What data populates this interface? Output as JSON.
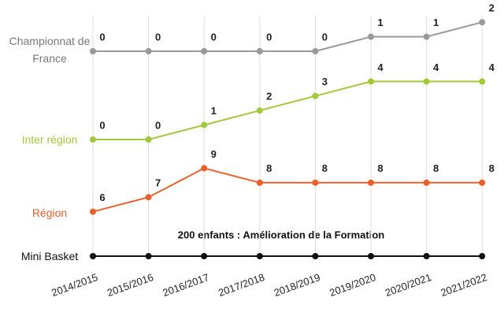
{
  "chart_data": {
    "type": "line",
    "categories": [
      "2014/2015",
      "2015/2016",
      "2016/2017",
      "2017/2018",
      "2018/2019",
      "2019/2020",
      "2020/2021",
      "2021/2022"
    ],
    "series": [
      {
        "name": "Championnat de France",
        "color": "#999999",
        "values": [
          0,
          0,
          0,
          0,
          0,
          1,
          1,
          2
        ]
      },
      {
        "name": "Inter région",
        "color": "#a3c83a",
        "values": [
          0,
          0,
          1,
          2,
          3,
          4,
          4,
          4
        ]
      },
      {
        "name": "Région",
        "color": "#e8602c",
        "values": [
          6,
          7,
          9,
          8,
          8,
          8,
          8,
          8
        ]
      },
      {
        "name": "Mini Basket",
        "color": "#111111"
      }
    ],
    "annotation": "200 enfants : Amélioration de la Formation"
  }
}
